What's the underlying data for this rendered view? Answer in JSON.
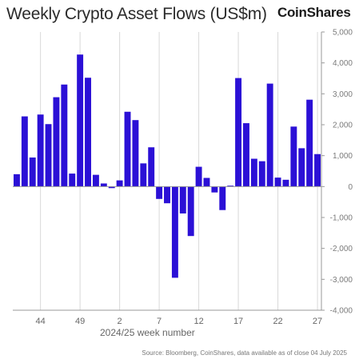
{
  "header": {
    "title": "Weekly Crypto Asset Flows (US$m)",
    "brand": "CoinShares"
  },
  "footer": {
    "source": "Source: Bloomberg, CoinShares, data available as of close 04 July 2025"
  },
  "colors": {
    "bar": "#2b10d6",
    "grid": "#d9d9d9",
    "axis": "#9a9a9a"
  },
  "chart_data": {
    "type": "bar",
    "title": "Weekly Crypto Asset Flows (US$m)",
    "xlabel": "2024/25 week number",
    "ylabel": "",
    "ylim": [
      -4000,
      5000
    ],
    "yticks": [
      5000,
      4000,
      3000,
      2000,
      1000,
      0,
      -1000,
      -2000,
      -3000,
      -4000
    ],
    "ytick_labels": [
      "5,000",
      "4,000",
      "3,000",
      "2,000",
      "1,000",
      "0",
      "-1,000",
      "-2,000",
      "-3,000",
      "-4,000"
    ],
    "y_axis_side": "right",
    "grid": "vertical",
    "xtick_labels": [
      {
        "label": "44",
        "index": 3
      },
      {
        "label": "49",
        "index": 8
      },
      {
        "label": "2",
        "index": 13
      },
      {
        "label": "7",
        "index": 18
      },
      {
        "label": "12",
        "index": 23
      },
      {
        "label": "17",
        "index": 28
      },
      {
        "label": "22",
        "index": 33
      },
      {
        "label": "27",
        "index": 38
      }
    ],
    "categories": [
      "41",
      "42",
      "43",
      "44",
      "45",
      "46",
      "47",
      "48",
      "49",
      "50",
      "51",
      "52",
      "1",
      "2",
      "3",
      "4",
      "5",
      "6",
      "7",
      "8",
      "9",
      "10",
      "11",
      "12",
      "13",
      "14",
      "15",
      "16",
      "17",
      "18",
      "19",
      "20",
      "21",
      "22",
      "23",
      "24",
      "25",
      "26",
      "27"
    ],
    "values": [
      400,
      2270,
      940,
      2330,
      2020,
      2890,
      3300,
      420,
      4270,
      3520,
      380,
      100,
      -50,
      200,
      2420,
      2150,
      750,
      1270,
      -400,
      -540,
      -2950,
      -870,
      -1600,
      640,
      280,
      -190,
      -760,
      30,
      3510,
      2050,
      900,
      820,
      3330,
      290,
      220,
      1940,
      1240,
      2810,
      1050
    ]
  }
}
